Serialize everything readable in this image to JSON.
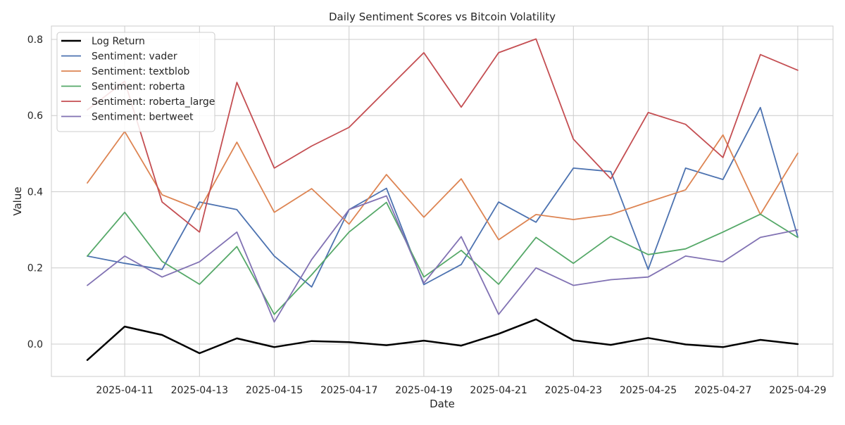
{
  "chart_data": {
    "type": "line",
    "title": "Daily Sentiment Scores vs Bitcoin Volatility",
    "xlabel": "Date",
    "ylabel": "Value",
    "x": [
      "2025-04-10",
      "2025-04-11",
      "2025-04-12",
      "2025-04-13",
      "2025-04-14",
      "2025-04-15",
      "2025-04-16",
      "2025-04-17",
      "2025-04-18",
      "2025-04-19",
      "2025-04-20",
      "2025-04-21",
      "2025-04-22",
      "2025-04-23",
      "2025-04-24",
      "2025-04-25",
      "2025-04-26",
      "2025-04-27",
      "2025-04-28",
      "2025-04-29"
    ],
    "xticks": [
      "2025-04-11",
      "2025-04-13",
      "2025-04-15",
      "2025-04-17",
      "2025-04-19",
      "2025-04-21",
      "2025-04-23",
      "2025-04-25",
      "2025-04-27",
      "2025-04-29"
    ],
    "yticks": [
      "0.0",
      "0.2",
      "0.4",
      "0.6",
      "0.8"
    ],
    "ylim": [
      -0.085,
      0.835
    ],
    "grid": true,
    "legend_position": "top-left",
    "series": [
      {
        "name": "Log Return",
        "color": "#000000",
        "width": 2.5,
        "values": [
          -0.042,
          0.046,
          0.024,
          -0.024,
          0.015,
          -0.008,
          0.008,
          0.005,
          -0.003,
          0.009,
          -0.004,
          0.027,
          0.065,
          0.01,
          -0.002,
          0.016,
          -0.001,
          -0.008,
          0.011,
          0.0
        ]
      },
      {
        "name": "Sentiment: vader",
        "color": "#4c72b0",
        "width": 1.8,
        "values": [
          0.231,
          0.212,
          0.196,
          0.373,
          0.353,
          0.231,
          0.15,
          0.353,
          0.409,
          0.156,
          0.209,
          0.373,
          0.32,
          0.462,
          0.453,
          0.196,
          0.462,
          0.432,
          0.621,
          0.282
        ]
      },
      {
        "name": "Sentiment: textblob",
        "color": "#dd8452",
        "width": 1.8,
        "values": [
          0.423,
          0.558,
          0.392,
          0.353,
          0.53,
          0.346,
          0.408,
          0.315,
          0.445,
          0.333,
          0.434,
          0.274,
          0.34,
          0.327,
          0.34,
          0.373,
          0.405,
          0.549,
          0.34,
          0.501
        ]
      },
      {
        "name": "Sentiment: roberta",
        "color": "#55a868",
        "width": 1.8,
        "values": [
          0.231,
          0.346,
          0.217,
          0.157,
          0.256,
          0.078,
          0.182,
          0.294,
          0.372,
          0.176,
          0.246,
          0.157,
          0.28,
          0.212,
          0.283,
          0.235,
          0.25,
          0.294,
          0.341,
          0.28
        ]
      },
      {
        "name": "Sentiment: roberta_large",
        "color": "#c44e52",
        "width": 1.8,
        "values": [
          0.615,
          0.69,
          0.373,
          0.294,
          0.687,
          0.462,
          0.52,
          0.569,
          0.667,
          0.765,
          0.622,
          0.765,
          0.801,
          0.538,
          0.434,
          0.608,
          0.577,
          0.49,
          0.76,
          0.719
        ]
      },
      {
        "name": "Sentiment: bertweet",
        "color": "#8172b3",
        "width": 1.8,
        "values": [
          0.154,
          0.231,
          0.176,
          0.216,
          0.294,
          0.058,
          0.222,
          0.353,
          0.389,
          0.16,
          0.282,
          0.078,
          0.2,
          0.154,
          0.169,
          0.176,
          0.231,
          0.216,
          0.28,
          0.3
        ]
      }
    ]
  }
}
